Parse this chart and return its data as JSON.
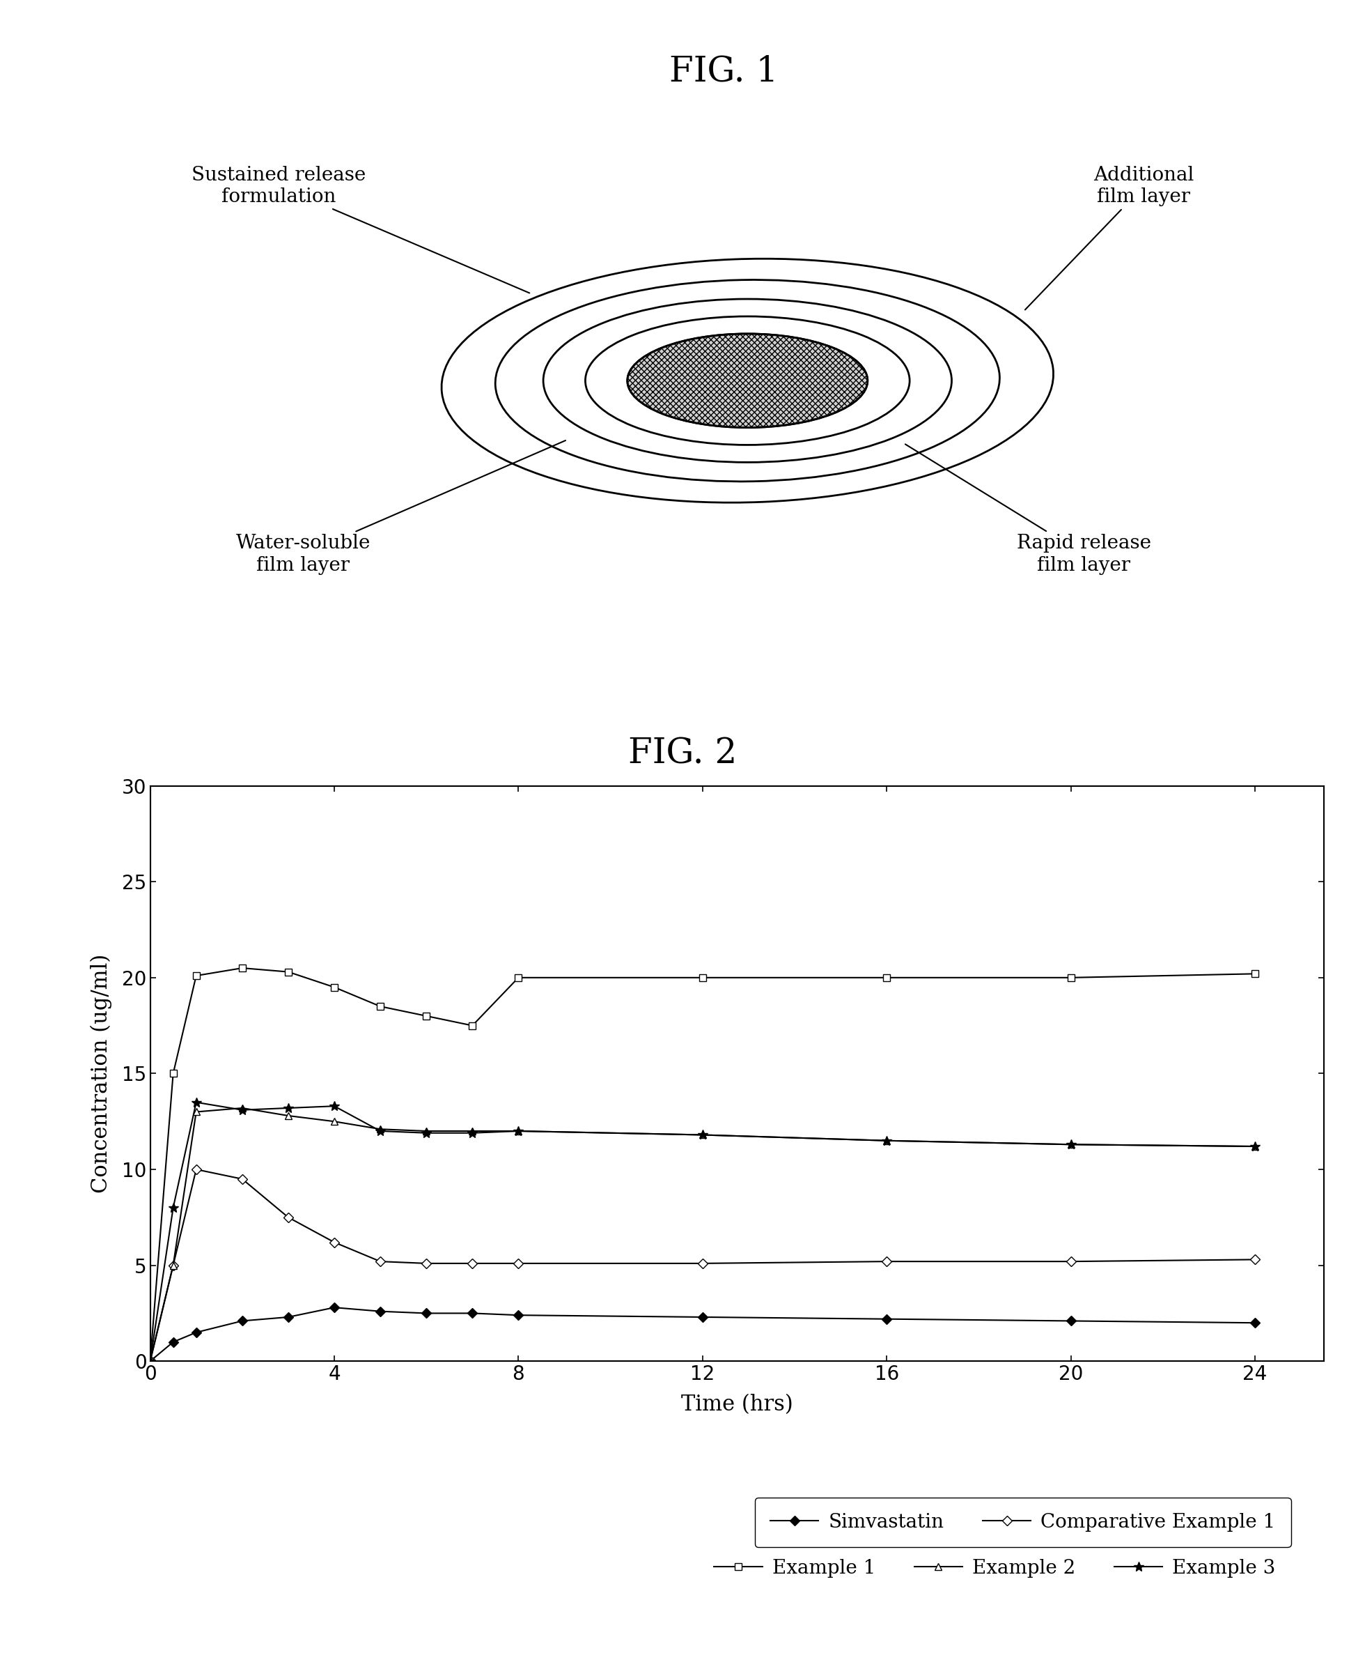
{
  "fig1_title": "FIG. 1",
  "fig2_title": "FIG. 2",
  "labels": {
    "sustained_release": "Sustained release\nformulation",
    "additional_film": "Additional\nfilm layer",
    "water_soluble": "Water-soluble\nfilm layer",
    "rapid_release": "Rapid release\nfilm layer"
  },
  "fig2": {
    "xlabel": "Time (hrs)",
    "ylabel": "Concentration (ug/ml)",
    "xlim": [
      0,
      25.5
    ],
    "ylim": [
      0,
      30
    ],
    "xticks": [
      0,
      4,
      8,
      12,
      16,
      20,
      24
    ],
    "yticks": [
      0,
      5,
      10,
      15,
      20,
      25,
      30
    ],
    "series": {
      "Simvastatin": {
        "x": [
          0,
          0.5,
          1,
          2,
          3,
          4,
          5,
          6,
          7,
          8,
          12,
          16,
          20,
          24
        ],
        "y": [
          0,
          1.0,
          1.5,
          2.1,
          2.3,
          2.8,
          2.6,
          2.5,
          2.5,
          2.4,
          2.3,
          2.2,
          2.1,
          2.0
        ],
        "marker": "D",
        "markersize": 7,
        "color": "#000000",
        "markerfacecolor": "#000000",
        "linestyle": "-",
        "linewidth": 1.5,
        "label": "Simvastatin",
        "order": 0
      },
      "Comparative Example 1": {
        "x": [
          0,
          0.5,
          1,
          2,
          3,
          4,
          5,
          6,
          7,
          8,
          12,
          16,
          20,
          24
        ],
        "y": [
          0,
          5.0,
          10.0,
          9.5,
          7.5,
          6.2,
          5.2,
          5.1,
          5.1,
          5.1,
          5.1,
          5.2,
          5.2,
          5.3
        ],
        "marker": "D",
        "markersize": 7,
        "color": "#000000",
        "markerfacecolor": "#ffffff",
        "linestyle": "-",
        "linewidth": 1.5,
        "label": "Comparative Example 1",
        "order": 3
      },
      "Example 1": {
        "x": [
          0,
          0.5,
          1,
          2,
          3,
          4,
          5,
          6,
          7,
          8,
          12,
          16,
          20,
          24
        ],
        "y": [
          0,
          15.0,
          20.1,
          20.5,
          20.3,
          19.5,
          18.5,
          18.0,
          17.5,
          20.0,
          20.0,
          20.0,
          20.0,
          20.2
        ],
        "marker": "s",
        "markersize": 7,
        "color": "#000000",
        "markerfacecolor": "#ffffff",
        "linestyle": "-",
        "linewidth": 1.5,
        "label": "Example 1",
        "order": 1
      },
      "Example 2": {
        "x": [
          0,
          0.5,
          1,
          2,
          3,
          4,
          5,
          6,
          7,
          8,
          12,
          16,
          20,
          24
        ],
        "y": [
          0,
          5.0,
          13.0,
          13.2,
          12.8,
          12.5,
          12.1,
          12.0,
          12.0,
          12.0,
          11.8,
          11.5,
          11.3,
          11.2
        ],
        "marker": "^",
        "markersize": 7,
        "color": "#000000",
        "markerfacecolor": "#ffffff",
        "linestyle": "-",
        "linewidth": 1.5,
        "label": "Example 2",
        "order": 4
      },
      "Example 3": {
        "x": [
          0,
          0.5,
          1,
          2,
          3,
          4,
          5,
          6,
          7,
          8,
          12,
          16,
          20,
          24
        ],
        "y": [
          0,
          8.0,
          13.5,
          13.1,
          13.2,
          13.3,
          12.0,
          11.9,
          11.9,
          12.0,
          11.8,
          11.5,
          11.3,
          11.2
        ],
        "marker": "*",
        "markersize": 10,
        "color": "#000000",
        "markerfacecolor": "#000000",
        "linestyle": "-",
        "linewidth": 1.5,
        "label": "Example 3",
        "order": 5
      }
    }
  },
  "background_color": "#ffffff",
  "text_color": "#000000"
}
